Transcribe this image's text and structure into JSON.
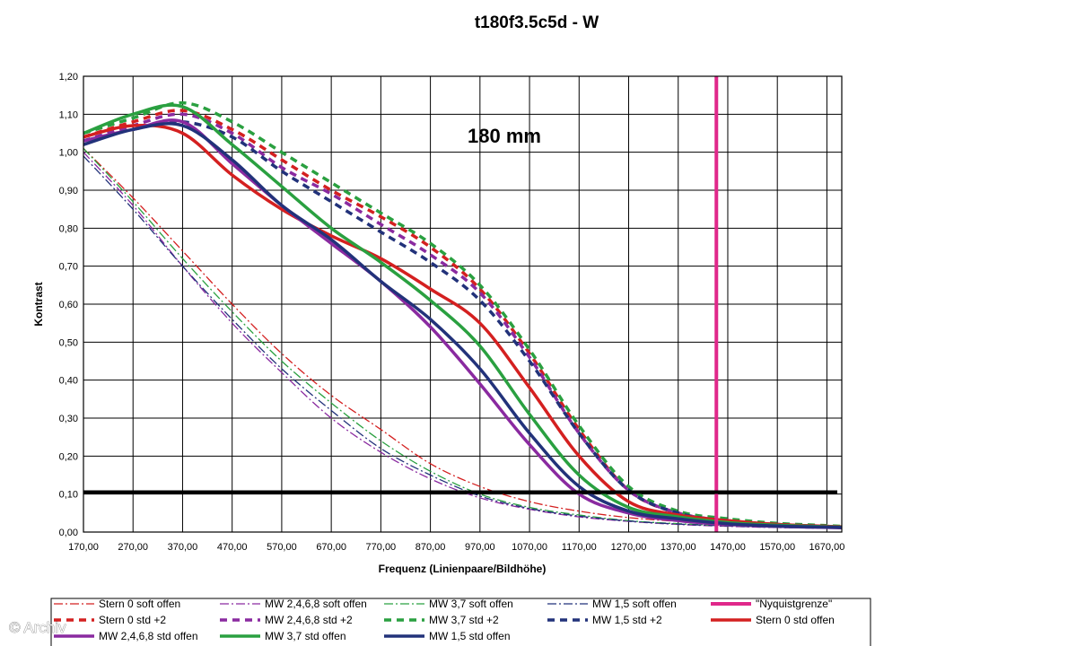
{
  "chart_data": {
    "type": "line",
    "title": "t180f3.5c5d - W",
    "xlabel": "Frequenz (Linienpaare/Bildhöhe)",
    "ylabel": "Kontrast",
    "annotation": "180 mm",
    "xlim": [
      170,
      1700
    ],
    "ylim": [
      0,
      1.2
    ],
    "x_ticks": [
      "170,00",
      "270,00",
      "370,00",
      "470,00",
      "570,00",
      "670,00",
      "770,00",
      "870,00",
      "970,00",
      "1070,00",
      "1170,00",
      "1270,00",
      "1370,00",
      "1470,00",
      "1570,00",
      "1670,00"
    ],
    "y_ticks": [
      "0,00",
      "0,10",
      "0,20",
      "0,30",
      "0,40",
      "0,50",
      "0,60",
      "0,70",
      "0,80",
      "0,90",
      "1,00",
      "1,10",
      "1,20"
    ],
    "grid": true,
    "legend_position": "bottom",
    "reference_line": {
      "y": 0.105,
      "color": "#000000"
    },
    "x": [
      170,
      270,
      370,
      470,
      570,
      670,
      770,
      870,
      970,
      1070,
      1170,
      1270,
      1370,
      1470,
      1570,
      1670,
      1700
    ],
    "series": [
      {
        "name": "Stern 0 soft offen",
        "color": "#d42020",
        "style": "dashdot",
        "width": 1.3,
        "values": [
          1.01,
          0.88,
          0.74,
          0.6,
          0.47,
          0.36,
          0.27,
          0.18,
          0.12,
          0.08,
          0.055,
          0.038,
          0.028,
          0.02,
          0.015,
          0.012,
          0.011
        ]
      },
      {
        "name": "MW 2,4,6,8 soft offen",
        "color": "#8a2aa0",
        "style": "dashdot",
        "width": 1.3,
        "values": [
          1.0,
          0.86,
          0.7,
          0.55,
          0.42,
          0.3,
          0.21,
          0.14,
          0.09,
          0.06,
          0.04,
          0.028,
          0.02,
          0.015,
          0.012,
          0.01,
          0.01
        ]
      },
      {
        "name": "MW 3,7 soft offen",
        "color": "#2aa040",
        "style": "dashdot",
        "width": 1.3,
        "values": [
          1.01,
          0.87,
          0.72,
          0.58,
          0.45,
          0.34,
          0.24,
          0.16,
          0.1,
          0.065,
          0.045,
          0.03,
          0.022,
          0.017,
          0.013,
          0.011,
          0.01
        ]
      },
      {
        "name": "MW 1,5 soft offen",
        "color": "#22327a",
        "style": "dashdot",
        "width": 1.3,
        "values": [
          0.99,
          0.85,
          0.7,
          0.56,
          0.43,
          0.32,
          0.22,
          0.15,
          0.095,
          0.062,
          0.042,
          0.029,
          0.021,
          0.016,
          0.012,
          0.01,
          0.01
        ]
      },
      {
        "name": "\"Nyquistgrenze\"",
        "color": "#e0288a",
        "style": "vline",
        "width": 4,
        "x_value": 1447
      },
      {
        "name": "Stern 0 std +2",
        "color": "#d42020",
        "style": "dash",
        "width": 3.5,
        "values": [
          1.04,
          1.08,
          1.11,
          1.06,
          0.98,
          0.9,
          0.83,
          0.75,
          0.64,
          0.47,
          0.27,
          0.11,
          0.05,
          0.03,
          0.02,
          0.015,
          0.013
        ]
      },
      {
        "name": "MW 2,4,6,8 std +2",
        "color": "#8a2aa0",
        "style": "dash",
        "width": 3.5,
        "values": [
          1.03,
          1.07,
          1.1,
          1.05,
          0.96,
          0.89,
          0.81,
          0.73,
          0.63,
          0.46,
          0.26,
          0.11,
          0.05,
          0.03,
          0.02,
          0.015,
          0.013
        ]
      },
      {
        "name": "MW 3,7 std +2",
        "color": "#2aa040",
        "style": "dash",
        "width": 3.5,
        "values": [
          1.05,
          1.09,
          1.13,
          1.08,
          1.0,
          0.92,
          0.84,
          0.76,
          0.65,
          0.48,
          0.28,
          0.12,
          0.055,
          0.035,
          0.023,
          0.017,
          0.015
        ]
      },
      {
        "name": "MW 1,5 std +2",
        "color": "#22327a",
        "style": "dash",
        "width": 3.5,
        "values": [
          1.03,
          1.06,
          1.08,
          1.04,
          0.95,
          0.87,
          0.79,
          0.71,
          0.61,
          0.45,
          0.26,
          0.11,
          0.05,
          0.03,
          0.02,
          0.015,
          0.013
        ]
      },
      {
        "name": "Stern 0 std offen",
        "color": "#d42020",
        "style": "solid",
        "width": 3.5,
        "values": [
          1.04,
          1.07,
          1.05,
          0.94,
          0.85,
          0.78,
          0.72,
          0.64,
          0.55,
          0.38,
          0.2,
          0.08,
          0.045,
          0.03,
          0.02,
          0.015,
          0.014
        ]
      },
      {
        "name": "MW 2,4,6,8 std offen",
        "color": "#8a2aa0",
        "style": "solid",
        "width": 3.5,
        "values": [
          1.03,
          1.06,
          1.08,
          0.97,
          0.86,
          0.76,
          0.66,
          0.54,
          0.39,
          0.23,
          0.1,
          0.05,
          0.03,
          0.02,
          0.015,
          0.012,
          0.011
        ]
      },
      {
        "name": "MW 3,7 std offen",
        "color": "#2aa040",
        "style": "solid",
        "width": 3.5,
        "values": [
          1.05,
          1.1,
          1.12,
          1.02,
          0.91,
          0.8,
          0.71,
          0.61,
          0.49,
          0.31,
          0.15,
          0.065,
          0.04,
          0.025,
          0.018,
          0.014,
          0.013
        ]
      },
      {
        "name": "MW 1,5 std offen",
        "color": "#22327a",
        "style": "solid",
        "width": 3.5,
        "values": [
          1.02,
          1.06,
          1.07,
          0.98,
          0.86,
          0.77,
          0.66,
          0.56,
          0.43,
          0.26,
          0.12,
          0.055,
          0.035,
          0.022,
          0.016,
          0.013,
          0.012
        ]
      }
    ]
  },
  "watermark": "© Archiv"
}
